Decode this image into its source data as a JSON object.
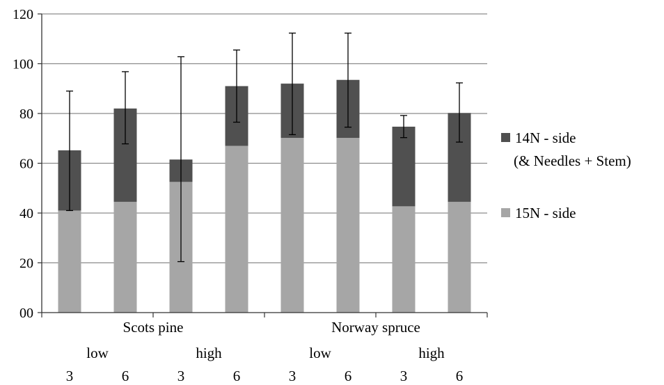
{
  "chart_data": {
    "type": "bar",
    "stacked": true,
    "categories": [
      "3",
      "6",
      "3",
      "6",
      "3",
      "6",
      "3",
      "6"
    ],
    "group_levels": [
      {
        "labels": [
          "low",
          "high",
          "low",
          "high"
        ]
      },
      {
        "labels": [
          "Scots pine",
          "Norway spruce"
        ]
      }
    ],
    "series": [
      {
        "name": "15N - side",
        "color": "#a6a6a6",
        "values": [
          41,
          44.5,
          52.5,
          67,
          70.2,
          70.2,
          42.7,
          44.5
        ]
      },
      {
        "name": "14N - side (& Needles + Stem)",
        "color": "#505050",
        "values": [
          24.2,
          37.5,
          9,
          24,
          21.8,
          23.3,
          32,
          35.7
        ]
      }
    ],
    "totals": [
      65.2,
      82,
      61.5,
      91,
      92,
      93.5,
      74.7,
      80.2
    ],
    "error_bars": [
      {
        "low": 41,
        "high": 89
      },
      {
        "low": 67.8,
        "high": 96.8
      },
      {
        "low": 20.5,
        "high": 102.8
      },
      {
        "low": 76.5,
        "high": 105.5
      },
      {
        "low": 71.5,
        "high": 112.3
      },
      {
        "low": 74.5,
        "high": 112.3
      },
      {
        "low": 70.3,
        "high": 79.2
      },
      {
        "low": 68.5,
        "high": 92.3
      }
    ],
    "ylim": [
      0,
      120
    ],
    "yticks": [
      0,
      20,
      40,
      60,
      80,
      100,
      120
    ],
    "ytick_labels": [
      "00",
      "20",
      "40",
      "60",
      "80",
      "100",
      "120"
    ],
    "grid": true,
    "legend_position": "right",
    "legend": [
      {
        "lines": [
          "14N - side",
          "(& Needles + Stem)"
        ],
        "color": "#505050"
      },
      {
        "lines": [
          "15N - side"
        ],
        "color": "#a6a6a6"
      }
    ],
    "title": "",
    "xlabel": "",
    "ylabel": ""
  }
}
